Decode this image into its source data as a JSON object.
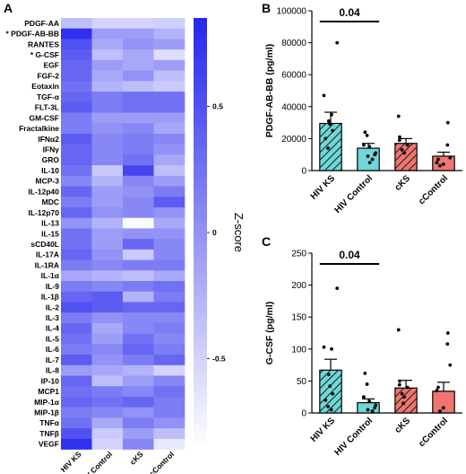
{
  "chart_data": [
    {
      "type": "heatmap",
      "panel": "A",
      "columns": [
        "HIV KS",
        "HIV Control",
        "cKS",
        "cControl"
      ],
      "rows": [
        {
          "label": "PDGF-AA",
          "values": [
            0.3,
            0.2,
            0.2,
            0.22
          ]
        },
        {
          "label": "* PDGF-AB-BB",
          "values": [
            0.95,
            0.45,
            0.45,
            0.35
          ]
        },
        {
          "label": "RANTES",
          "values": [
            0.8,
            0.4,
            0.5,
            0.45
          ]
        },
        {
          "label": "* G-CSF",
          "values": [
            0.75,
            0.3,
            0.4,
            0.15
          ]
        },
        {
          "label": "EGF",
          "values": [
            0.7,
            0.45,
            0.4,
            0.45
          ]
        },
        {
          "label": "FGF-2",
          "values": [
            0.7,
            0.4,
            0.5,
            0.3
          ]
        },
        {
          "label": "Eotaxin",
          "values": [
            0.65,
            0.35,
            0.3,
            0.25
          ]
        },
        {
          "label": "TGF-α",
          "values": [
            0.7,
            0.6,
            0.65,
            0.65
          ]
        },
        {
          "label": "FLT-3L",
          "values": [
            0.75,
            0.6,
            0.65,
            0.65
          ]
        },
        {
          "label": "GM-CSF",
          "values": [
            0.6,
            0.45,
            0.45,
            0.45
          ]
        },
        {
          "label": "Fractalkine",
          "values": [
            0.6,
            0.5,
            0.55,
            0.4
          ]
        },
        {
          "label": "IFNα2",
          "values": [
            0.75,
            0.55,
            0.6,
            0.55
          ]
        },
        {
          "label": "IFNγ",
          "values": [
            0.7,
            0.55,
            0.6,
            0.5
          ]
        },
        {
          "label": "GRO",
          "values": [
            0.7,
            0.55,
            0.65,
            0.4
          ]
        },
        {
          "label": "IL-10",
          "values": [
            0.65,
            0.25,
            0.85,
            0.3
          ]
        },
        {
          "label": "MCP-3",
          "values": [
            0.55,
            0.35,
            0.55,
            0.45
          ]
        },
        {
          "label": "IL-12p40",
          "values": [
            0.7,
            0.45,
            0.5,
            0.6
          ]
        },
        {
          "label": "MDC",
          "values": [
            0.6,
            0.45,
            0.55,
            0.75
          ]
        },
        {
          "label": "IL-12p70",
          "values": [
            0.7,
            0.5,
            0.55,
            0.5
          ]
        },
        {
          "label": "IL-13",
          "values": [
            0.5,
            0.35,
            0.02,
            0.4
          ]
        },
        {
          "label": "IL-15",
          "values": [
            0.65,
            0.45,
            0.5,
            0.5
          ]
        },
        {
          "label": "sCD40L",
          "values": [
            0.65,
            0.45,
            0.7,
            0.55
          ]
        },
        {
          "label": "IL-17A",
          "values": [
            0.7,
            0.5,
            0.25,
            0.55
          ]
        },
        {
          "label": "IL-1RA",
          "values": [
            0.6,
            0.55,
            0.6,
            0.6
          ]
        },
        {
          "label": "IL-1α",
          "values": [
            0.4,
            0.35,
            0.3,
            0.4
          ]
        },
        {
          "label": "IL-9",
          "values": [
            0.6,
            0.55,
            0.6,
            0.65
          ]
        },
        {
          "label": "IL-1β",
          "values": [
            0.7,
            0.75,
            0.35,
            0.6
          ]
        },
        {
          "label": "IL-2",
          "values": [
            0.8,
            0.75,
            0.7,
            0.7
          ]
        },
        {
          "label": "IL-3",
          "values": [
            0.6,
            0.5,
            0.55,
            0.55
          ]
        },
        {
          "label": "IL-4",
          "values": [
            0.7,
            0.4,
            0.55,
            0.6
          ]
        },
        {
          "label": "IL-5",
          "values": [
            0.65,
            0.45,
            0.65,
            0.55
          ]
        },
        {
          "label": "IL-6",
          "values": [
            0.6,
            0.55,
            0.7,
            0.6
          ]
        },
        {
          "label": "IL-7",
          "values": [
            0.75,
            0.5,
            0.6,
            0.7
          ]
        },
        {
          "label": "IL-8",
          "values": [
            0.45,
            0.4,
            0.35,
            0.2
          ]
        },
        {
          "label": "IP-10",
          "values": [
            0.7,
            0.3,
            0.45,
            0.55
          ]
        },
        {
          "label": "MCP1",
          "values": [
            0.65,
            0.6,
            0.55,
            0.65
          ]
        },
        {
          "label": "MIP-1α",
          "values": [
            0.7,
            0.65,
            0.7,
            0.6
          ]
        },
        {
          "label": "MIP-1β",
          "values": [
            0.6,
            0.55,
            0.5,
            0.6
          ]
        },
        {
          "label": "TNFα",
          "values": [
            0.65,
            0.4,
            0.6,
            0.5
          ]
        },
        {
          "label": "TNFβ",
          "values": [
            0.8,
            0.25,
            0.45,
            0.3
          ]
        },
        {
          "label": "VEGF",
          "values": [
            0.95,
            0.2,
            0.55,
            0.1
          ]
        }
      ],
      "colorbar": {
        "title": "Z-score",
        "tick_labels": [
          "0.5",
          "0",
          "-0.5"
        ],
        "tick_values": [
          0.5,
          0,
          -0.5
        ],
        "range": [
          -0.85,
          0.85
        ],
        "low_color": "#ffffff",
        "high_color": "#2525ee"
      }
    },
    {
      "type": "bar",
      "panel": "B",
      "categories": [
        "HIV KS",
        "HIV Control",
        "cKS",
        "cControl"
      ],
      "values": [
        29500,
        14000,
        17000,
        9000
      ],
      "errors": [
        7000,
        3000,
        3000,
        2500
      ],
      "points": [
        [
          80000,
          47000,
          35000,
          31000,
          29000,
          25000,
          20000,
          14000
        ],
        [
          24000,
          22000,
          16000,
          15000,
          11000,
          10000,
          9000,
          7000,
          5000
        ],
        [
          34000,
          21000,
          19000,
          16000,
          13000,
          11000
        ],
        [
          30000,
          16000,
          8000,
          7000,
          5000,
          4000,
          3000
        ]
      ],
      "ylabel": "PDGF-AB-BB (pg/ml)",
      "ylim": [
        0,
        100000
      ],
      "yticks": [
        0,
        20000,
        40000,
        60000,
        80000,
        100000
      ],
      "significance": {
        "label": "0.04",
        "between": [
          "HIV KS",
          "HIV Control"
        ]
      },
      "colors": [
        "#6ed8d8",
        "#6ed8d8",
        "#ef7570",
        "#ef7570"
      ],
      "hatched": [
        true,
        false,
        true,
        false
      ]
    },
    {
      "type": "bar",
      "panel": "C",
      "categories": [
        "HIV KS",
        "HIV Control",
        "cKS",
        "cControl"
      ],
      "values": [
        67,
        16,
        39,
        34
      ],
      "errors": [
        17,
        6,
        12,
        14
      ],
      "points": [
        [
          195,
          103,
          100,
          60,
          42,
          30,
          20,
          10,
          5
        ],
        [
          62,
          45,
          25,
          18,
          12,
          8,
          5,
          3
        ],
        [
          130,
          50,
          44,
          40,
          30,
          25,
          15
        ],
        [
          125,
          108,
          75,
          40,
          35,
          8,
          3
        ]
      ],
      "ylabel": "G-CSF (pg/ml)",
      "ylim": [
        0,
        250
      ],
      "yticks": [
        0,
        50,
        100,
        150,
        200,
        250
      ],
      "significance": {
        "label": "0.04",
        "between": [
          "HIV KS",
          "HIV Control"
        ]
      },
      "colors": [
        "#6ed8d8",
        "#6ed8d8",
        "#ef7570",
        "#ef7570"
      ],
      "hatched": [
        true,
        false,
        true,
        false
      ]
    }
  ]
}
